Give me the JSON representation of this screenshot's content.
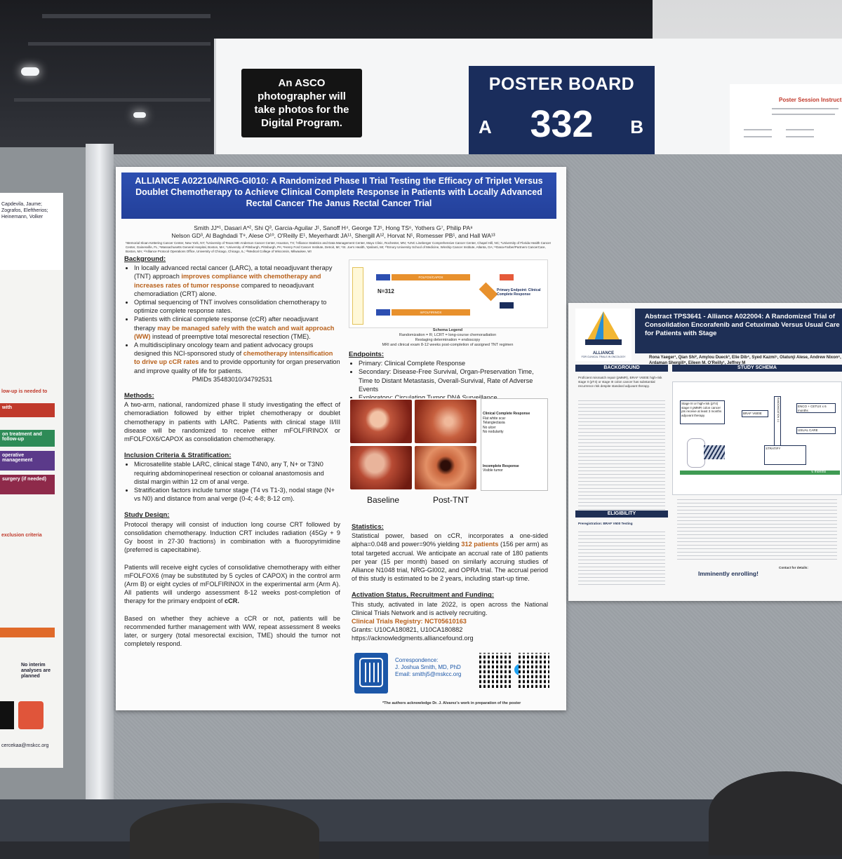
{
  "header": {
    "photo_notice": "An ASCO photographer will take photos for the Digital Program.",
    "board_title": "POSTER BOARD",
    "board_number": "332",
    "side_a": "A",
    "side_b": "B",
    "instructions_title": "Poster Session Instructions"
  },
  "main_poster": {
    "title": "ALLIANCE A022104/NRG-GI010: A Randomized Phase II Trial Testing the Efficacy of Triplet Versus Doublet Chemotherapy to Achieve Clinical Complete Response in Patients with Locally Advanced Rectal Cancer The Janus Rectal Cancer Trial",
    "authors_line1": "Smith JJ*¹, Dasari A*², Shi Q³, Garcia-Aguilar J¹, Sanoff H⁴, George TJ⁵, Hong TS⁶, Yothers G⁷, Philip PA⁸",
    "authors_line2": "Nelson GD³, Al Baghdadi T⁹, Alese O¹⁰, O'Reilly E¹, Meyerhardt JA¹¹, Shergill A¹², Horvat N¹, Romesser PB¹, and Hall WA¹³",
    "affiliations": "¹Memorial Sloan Kettering Cancer Center, New York, NY; ²University of Texas MD Anderson Cancer Center, Houston, TX; ³Alliance Statistics and Data Management Center, Mayo Clinic, Rochester, MN; ⁴UNC Lineberger Comprehensive Cancer Center, Chapel Hill, NC; ⁵University of Florida Health Cancer Center, Gainesville, FL; ⁶Massachusetts General Hospital, Boston, MA; ⁷University of Pittsburgh, Pittsburgh, PA; ⁸Henry Ford Cancer Institute, Detroit, MI; ⁹St. Joe's Health, Ypsilanti, MI; ¹⁰Emory University School of Medicine, Winship Cancer Institute, Atlanta, GA; ¹¹Dana-Farber/Partners CancerCare, Boston, MA; ¹²Alliance Protocol Operations Office, University of Chicago, Chicago, IL; ¹³Medical College of Wisconsin, Milwaukee, WI",
    "background_heading": "Background:",
    "bg1_a": "In locally advanced rectal cancer (LARC), a total neoadjuvant therapy (TNT) approach ",
    "bg1_hl": "improves compliance with chemotherapy and increases rates of tumor response",
    "bg1_b": " compared to neoadjuvant chemoradiation (CRT) alone.",
    "bg2": "Optimal sequencing of TNT involves consolidation chemotherapy to optimize complete response rates.",
    "bg3_a": "Patients with clinical complete response (cCR) after neoadjuvant therapy ",
    "bg3_hl": "may be managed safely with the watch and wait approach (WW)",
    "bg3_b": " instead of preemptive total mesorectal resection (TME).",
    "bg4_a": "A multidisciplinary oncology team and patient advocacy groups designed this NCI-sponsored study of ",
    "bg4_hl": "chemotherapy intensification to drive up cCR rates",
    "bg4_b": " and to provide opportunity for organ preservation and improve quality of life for patients.",
    "pmids": "PMIDs 35483010/34792531",
    "methods_heading": "Methods:",
    "methods_text": "A two-arm, national, randomized phase II study investigating the effect of chemoradiation followed by either triplet chemotherapy or doublet chemotherapy in patients with LARC. Patients with clinical stage II/III disease will be randomized to receive either mFOLFIRINOX or mFOLFOX6/CAPOX as consolidation chemotherapy.",
    "inclusion_heading": "Inclusion Criteria & Stratification:",
    "inc1": "Microsatellite stable LARC, clinical stage T4N0, any T, N+ or T3N0 requiring abdominoperineal resection or coloanal anastomosis and distal margin within 12 cm of anal verge.",
    "inc2": "Stratification factors include tumor stage (T4 vs T1-3), nodal stage (N+ vs N0) and distance from anal verge (0-4; 4-8; 8-12 cm).",
    "design_heading": "Study Design:",
    "design_p1": "Protocol therapy will consist of induction long course CRT followed by consolidation chemotherapy. Induction CRT includes radiation (45Gy + 9 Gy boost in 27-30 fractions) in combination with a fluoropyrimidine (preferred is capecitabine).",
    "design_p2_a": "Patients will receive eight cycles of consolidative chemotherapy with either mFOLFOX6 (may be substituted by 5 cycles of CAPOX) in the control arm (Arm B) or eight cycles of mFOLFIRINOX in the experimental arm (Arm A). All patients will undergo assessment 8-12 weeks post-completion of therapy for the primary endpoint of ",
    "design_p2_b": "cCR.",
    "design_p3": "Based on whether they achieve a cCR or not, patients will be recommended further management with WW, repeat assessment 8 weeks later, or surgery (total mesorectal excision, TME) should the tumor not completely respond.",
    "schema_n": "N=312",
    "schema_arm_a": "FOLFOX/CAPOX",
    "schema_arm_b": "mFOLFIRINOX",
    "schema_primary": "Primary Endpoint: Clinical Complete Response",
    "schema_legend_title": "Schema Legend",
    "schema_legend_1": "Randomization = R; LCRT = long-course chemoradiation",
    "schema_legend_2": "Restaging determination = endoscopy",
    "schema_legend_3": "MRI and clinical exam 8-12 weeks post-completion of assigned TNT regimen",
    "endpoints_heading": "Endpoints:",
    "ep1": "Primary: Clinical Complete Response",
    "ep2": "Secondary: Disease-Free Survival, Organ-Preservation Time, Time to Distant Metastasis, Overall-Survival, Rate of Adverse Events",
    "ep3": "Exploratory: Circulating Tumor DNA Surveillance",
    "endo_ccr_title": "Clinical Complete Response",
    "endo_ccr_items": "Flat white scar\nTelangiectasia\nNo ulcer\nNo nodularity",
    "endo_icr_title": "Incomplete Response",
    "endo_icr_items": "Visible tumor",
    "label_baseline": "Baseline",
    "label_post": "Post-TNT",
    "stats_heading": "Statistics:",
    "stats_a": "Statistical power, based on cCR, incorporates a one-sided alpha=0.048 and power=90% yielding ",
    "stats_hl": "312 patients",
    "stats_b": " (156 per arm) as total targeted accrual. We anticipate an accrual rate of 180 patients per year (15 per month) based on similarly accruing studies of Alliance N1048 trial, NRG-GI002, and OPRA trial. The accrual period of this study is estimated to be 2 years, including start-up time.",
    "activation_heading": "Activation Status, Recruitment and Funding:",
    "activation_text": "This study, activated in late 2022, is open across the National Clinical Trials Network and is actively recruiting.",
    "registry": "Clinical Trials Registry: NCT05610163",
    "grants": "Grants: U10CA180821, U10CA180882",
    "url": "https://acknowledgments.alliancefound.org",
    "corr_label": "Correspondence:",
    "corr_name": "J. Joshua Smith, MD, PhD",
    "corr_email": "Email: smithj5@mskcc.org",
    "ack": "*The authors acknowledge Dr. J. Alvarez's work in preparation of the poster"
  },
  "right_poster": {
    "title": "Abstract TPS3641 - Alliance A022004: A Randomized Trial of Consolidation Encorafenib and Cetuximab Versus Usual Care for Patients with Stage",
    "authors": "Rona Yaeger¹, Qian Shi², Amylou Dueck³, Elie Dib⁴, Syed Kazmi⁵, Olatunji Alese, Andrew Nixon⁶, Ardaman Shergill⁸, Eileen M. O'Reilly¹, Jeffrey M",
    "logo_text": "ALLIANCE",
    "logo_sub": "FOR CLINICAL TRIALS IN ONCOLOGY",
    "background_label": "BACKGROUND",
    "schema_label": "STUDY SCHEMA",
    "eligibility_label": "ELIGIBILITY",
    "bg_text": "Proficient mismatch repair (pMMR), BRAF V600E high-risk stage II (pT4) or stage III colon cancer has substantial recurrence risk despite standard adjuvant therapy.",
    "schema_stage": "Stage III or high-risk (pT4) stage II pMMR colon cancer pts receive at least 3 months adjuvant therapy",
    "schema_braf": "BRAF V600E",
    "schema_rand": "RANDOMIZATION 1:1",
    "schema_enco": "ENCO + CETUX x 6 months",
    "schema_usual": "USUAL CARE",
    "schema_strat": "STRATIFY",
    "timebar_6": "6 months",
    "elig_text": "Preregistration: BRAF V600 Testing",
    "contact_label": "Contact for details:",
    "enrolling": "Imminently enrolling!"
  },
  "left_poster": {
    "authors": "Capdevila, Jaume; Zografos, Eleftherios; Heinemann, Volker",
    "red_note": "low-up is needed to",
    "box_with": "with",
    "box1": "on treatment and follow-up",
    "box2": "operative management",
    "box3": "surgery (if needed)",
    "excl": "exclusion criteria",
    "no_interim": "No interim analyses are planned",
    "contact": "cercekaa@mskcc.org"
  }
}
